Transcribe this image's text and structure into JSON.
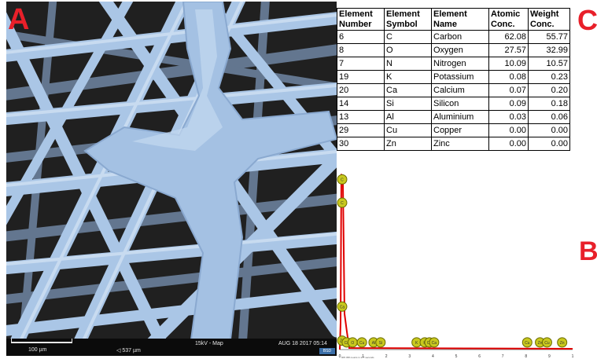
{
  "panel_labels": {
    "a": "A",
    "b": "B",
    "c": "C"
  },
  "sem": {
    "scale_label": "100 µm",
    "hfw": "◁ 537 µm",
    "mode": "15kV - Map",
    "date": "AUG 18 2017 05:14",
    "detector": "BSD",
    "fiber_color": "#a9c6e6",
    "background_color": "#1a1a1a"
  },
  "table": {
    "headers": [
      [
        "Element",
        "Number"
      ],
      [
        "Element",
        "Symbol"
      ],
      [
        "Element",
        "Name"
      ],
      [
        "Atomic",
        "Conc."
      ],
      [
        "Weight",
        "Conc."
      ]
    ],
    "rows": [
      [
        "6",
        "C",
        "Carbon",
        "62.08",
        "55.77"
      ],
      [
        "8",
        "O",
        "Oxygen",
        "27.57",
        "32.99"
      ],
      [
        "7",
        "N",
        "Nitrogen",
        "10.09",
        "10.57"
      ],
      [
        "19",
        "K",
        "Potassium",
        "0.08",
        "0.23"
      ],
      [
        "20",
        "Ca",
        "Calcium",
        "0.07",
        "0.20"
      ],
      [
        "14",
        "Si",
        "Silicon",
        "0.09",
        "0.18"
      ],
      [
        "13",
        "Al",
        "Aluminium",
        "0.03",
        "0.06"
      ],
      [
        "29",
        "Cu",
        "Copper",
        "0.00",
        "0.00"
      ],
      [
        "30",
        "Zn",
        "Zinc",
        "0.00",
        "0.00"
      ]
    ]
  },
  "spectrum": {
    "x_ticks": [
      "0",
      "1",
      "2",
      "3",
      "4",
      "5",
      "6",
      "7",
      "8",
      "9",
      "1"
    ],
    "caption": "905 458 counts in 177 seconds",
    "line_color": "#e00000",
    "marker_color": "#c8c81e",
    "markers": [
      {
        "label": "C",
        "x": 0.1,
        "y": 0.95
      },
      {
        "label": "C",
        "x": 0.1,
        "y": 0.82
      },
      {
        "label": "Ca",
        "x": 0.1,
        "y": 0.24
      },
      {
        "label": "Zn",
        "x": 0.1,
        "y": 0.05
      },
      {
        "label": "Cu",
        "x": 0.3,
        "y": 0.04
      },
      {
        "label": "O",
        "x": 0.55,
        "y": 0.04
      },
      {
        "label": "Cu",
        "x": 0.95,
        "y": 0.04
      },
      {
        "label": "Al",
        "x": 1.45,
        "y": 0.04
      },
      {
        "label": "Si",
        "x": 1.75,
        "y": 0.04
      },
      {
        "label": "K",
        "x": 3.3,
        "y": 0.04
      },
      {
        "label": "K",
        "x": 3.65,
        "y": 0.04
      },
      {
        "label": "Ca",
        "x": 3.85,
        "y": 0.04
      },
      {
        "label": "Ca",
        "x": 4.05,
        "y": 0.04
      },
      {
        "label": "Cu",
        "x": 8.05,
        "y": 0.04
      },
      {
        "label": "Zn",
        "x": 8.6,
        "y": 0.04
      },
      {
        "label": "Cu",
        "x": 8.9,
        "y": 0.04
      },
      {
        "label": "Zn",
        "x": 9.55,
        "y": 0.04
      }
    ]
  }
}
